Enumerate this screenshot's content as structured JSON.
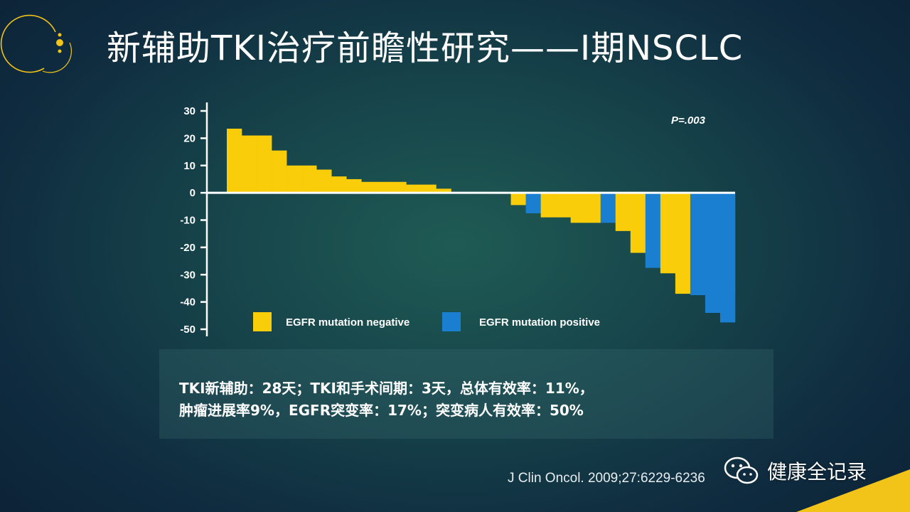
{
  "slide": {
    "title": "新辅助TKI治疗前瞻性研究——I期NSCLC",
    "note_line1": "TKI新辅助：28天；TKI和手术间期：3天，总体有效率：11%，",
    "note_line2": "肿瘤进展率9%，EGFR突变率：17%；突变病人有效率：50%",
    "citation": "J Clin Oncol. 2009;27:6229-6236",
    "watermark": "健康全记录",
    "colors": {
      "accent": "#f2c318",
      "negative": "#f9cd0a",
      "positive": "#1a7fd0"
    }
  },
  "chart_data": {
    "type": "bar",
    "annotation": "P=.003",
    "ylim": [
      -50,
      30
    ],
    "yticks": [
      30,
      20,
      10,
      0,
      -10,
      -20,
      -30,
      -40,
      -50
    ],
    "legend_placement": "bottom-center",
    "legend": [
      {
        "name": "EGFR mutation negative",
        "color": "#f9cd0a"
      },
      {
        "name": "EGFR mutation positive",
        "color": "#1a7fd0"
      }
    ],
    "bars": [
      {
        "value": 23.5,
        "group": "negative"
      },
      {
        "value": 21,
        "group": "negative"
      },
      {
        "value": 21,
        "group": "negative"
      },
      {
        "value": 15.5,
        "group": "negative"
      },
      {
        "value": 10,
        "group": "negative"
      },
      {
        "value": 10,
        "group": "negative"
      },
      {
        "value": 8.5,
        "group": "negative"
      },
      {
        "value": 6,
        "group": "negative"
      },
      {
        "value": 5,
        "group": "negative"
      },
      {
        "value": 4,
        "group": "negative"
      },
      {
        "value": 4,
        "group": "negative"
      },
      {
        "value": 4,
        "group": "negative"
      },
      {
        "value": 3,
        "group": "negative"
      },
      {
        "value": 3,
        "group": "negative"
      },
      {
        "value": 1.5,
        "group": "negative"
      },
      {
        "value": 0,
        "group": "negative"
      },
      {
        "value": 0,
        "group": "negative"
      },
      {
        "value": 0,
        "group": "negative"
      },
      {
        "value": 0,
        "group": "negative"
      },
      {
        "value": -4.5,
        "group": "negative"
      },
      {
        "value": -7.5,
        "group": "positive"
      },
      {
        "value": -9,
        "group": "negative"
      },
      {
        "value": -9,
        "group": "negative"
      },
      {
        "value": -11,
        "group": "negative"
      },
      {
        "value": -11,
        "group": "negative"
      },
      {
        "value": -11,
        "group": "positive"
      },
      {
        "value": -14,
        "group": "negative"
      },
      {
        "value": -22,
        "group": "negative"
      },
      {
        "value": -27.5,
        "group": "positive"
      },
      {
        "value": -29.5,
        "group": "negative"
      },
      {
        "value": -37,
        "group": "negative"
      },
      {
        "value": -37.5,
        "group": "positive"
      },
      {
        "value": -44,
        "group": "positive"
      },
      {
        "value": -47.5,
        "group": "positive"
      }
    ]
  }
}
